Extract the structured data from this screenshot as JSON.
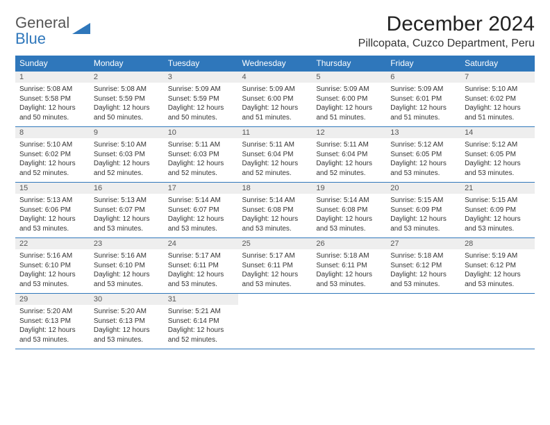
{
  "brand": {
    "line1": "General",
    "line2": "Blue"
  },
  "title": "December 2024",
  "location": "Pillcopata, Cuzco Department, Peru",
  "colors": {
    "header_bg": "#2f77bb",
    "header_text": "#ffffff",
    "daynum_bg": "#eeeeee",
    "border": "#2f77bb",
    "body_text": "#333333",
    "page_bg": "#ffffff"
  },
  "typography": {
    "title_fontsize": 30,
    "location_fontsize": 16,
    "dow_fontsize": 12,
    "daynum_fontsize": 11,
    "body_fontsize": 10
  },
  "dow": [
    "Sunday",
    "Monday",
    "Tuesday",
    "Wednesday",
    "Thursday",
    "Friday",
    "Saturday"
  ],
  "weeks": [
    [
      {
        "n": "1",
        "sr": "Sunrise: 5:08 AM",
        "ss": "Sunset: 5:58 PM",
        "d1": "Daylight: 12 hours",
        "d2": "and 50 minutes."
      },
      {
        "n": "2",
        "sr": "Sunrise: 5:08 AM",
        "ss": "Sunset: 5:59 PM",
        "d1": "Daylight: 12 hours",
        "d2": "and 50 minutes."
      },
      {
        "n": "3",
        "sr": "Sunrise: 5:09 AM",
        "ss": "Sunset: 5:59 PM",
        "d1": "Daylight: 12 hours",
        "d2": "and 50 minutes."
      },
      {
        "n": "4",
        "sr": "Sunrise: 5:09 AM",
        "ss": "Sunset: 6:00 PM",
        "d1": "Daylight: 12 hours",
        "d2": "and 51 minutes."
      },
      {
        "n": "5",
        "sr": "Sunrise: 5:09 AM",
        "ss": "Sunset: 6:00 PM",
        "d1": "Daylight: 12 hours",
        "d2": "and 51 minutes."
      },
      {
        "n": "6",
        "sr": "Sunrise: 5:09 AM",
        "ss": "Sunset: 6:01 PM",
        "d1": "Daylight: 12 hours",
        "d2": "and 51 minutes."
      },
      {
        "n": "7",
        "sr": "Sunrise: 5:10 AM",
        "ss": "Sunset: 6:02 PM",
        "d1": "Daylight: 12 hours",
        "d2": "and 51 minutes."
      }
    ],
    [
      {
        "n": "8",
        "sr": "Sunrise: 5:10 AM",
        "ss": "Sunset: 6:02 PM",
        "d1": "Daylight: 12 hours",
        "d2": "and 52 minutes."
      },
      {
        "n": "9",
        "sr": "Sunrise: 5:10 AM",
        "ss": "Sunset: 6:03 PM",
        "d1": "Daylight: 12 hours",
        "d2": "and 52 minutes."
      },
      {
        "n": "10",
        "sr": "Sunrise: 5:11 AM",
        "ss": "Sunset: 6:03 PM",
        "d1": "Daylight: 12 hours",
        "d2": "and 52 minutes."
      },
      {
        "n": "11",
        "sr": "Sunrise: 5:11 AM",
        "ss": "Sunset: 6:04 PM",
        "d1": "Daylight: 12 hours",
        "d2": "and 52 minutes."
      },
      {
        "n": "12",
        "sr": "Sunrise: 5:11 AM",
        "ss": "Sunset: 6:04 PM",
        "d1": "Daylight: 12 hours",
        "d2": "and 52 minutes."
      },
      {
        "n": "13",
        "sr": "Sunrise: 5:12 AM",
        "ss": "Sunset: 6:05 PM",
        "d1": "Daylight: 12 hours",
        "d2": "and 53 minutes."
      },
      {
        "n": "14",
        "sr": "Sunrise: 5:12 AM",
        "ss": "Sunset: 6:05 PM",
        "d1": "Daylight: 12 hours",
        "d2": "and 53 minutes."
      }
    ],
    [
      {
        "n": "15",
        "sr": "Sunrise: 5:13 AM",
        "ss": "Sunset: 6:06 PM",
        "d1": "Daylight: 12 hours",
        "d2": "and 53 minutes."
      },
      {
        "n": "16",
        "sr": "Sunrise: 5:13 AM",
        "ss": "Sunset: 6:07 PM",
        "d1": "Daylight: 12 hours",
        "d2": "and 53 minutes."
      },
      {
        "n": "17",
        "sr": "Sunrise: 5:14 AM",
        "ss": "Sunset: 6:07 PM",
        "d1": "Daylight: 12 hours",
        "d2": "and 53 minutes."
      },
      {
        "n": "18",
        "sr": "Sunrise: 5:14 AM",
        "ss": "Sunset: 6:08 PM",
        "d1": "Daylight: 12 hours",
        "d2": "and 53 minutes."
      },
      {
        "n": "19",
        "sr": "Sunrise: 5:14 AM",
        "ss": "Sunset: 6:08 PM",
        "d1": "Daylight: 12 hours",
        "d2": "and 53 minutes."
      },
      {
        "n": "20",
        "sr": "Sunrise: 5:15 AM",
        "ss": "Sunset: 6:09 PM",
        "d1": "Daylight: 12 hours",
        "d2": "and 53 minutes."
      },
      {
        "n": "21",
        "sr": "Sunrise: 5:15 AM",
        "ss": "Sunset: 6:09 PM",
        "d1": "Daylight: 12 hours",
        "d2": "and 53 minutes."
      }
    ],
    [
      {
        "n": "22",
        "sr": "Sunrise: 5:16 AM",
        "ss": "Sunset: 6:10 PM",
        "d1": "Daylight: 12 hours",
        "d2": "and 53 minutes."
      },
      {
        "n": "23",
        "sr": "Sunrise: 5:16 AM",
        "ss": "Sunset: 6:10 PM",
        "d1": "Daylight: 12 hours",
        "d2": "and 53 minutes."
      },
      {
        "n": "24",
        "sr": "Sunrise: 5:17 AM",
        "ss": "Sunset: 6:11 PM",
        "d1": "Daylight: 12 hours",
        "d2": "and 53 minutes."
      },
      {
        "n": "25",
        "sr": "Sunrise: 5:17 AM",
        "ss": "Sunset: 6:11 PM",
        "d1": "Daylight: 12 hours",
        "d2": "and 53 minutes."
      },
      {
        "n": "26",
        "sr": "Sunrise: 5:18 AM",
        "ss": "Sunset: 6:11 PM",
        "d1": "Daylight: 12 hours",
        "d2": "and 53 minutes."
      },
      {
        "n": "27",
        "sr": "Sunrise: 5:18 AM",
        "ss": "Sunset: 6:12 PM",
        "d1": "Daylight: 12 hours",
        "d2": "and 53 minutes."
      },
      {
        "n": "28",
        "sr": "Sunrise: 5:19 AM",
        "ss": "Sunset: 6:12 PM",
        "d1": "Daylight: 12 hours",
        "d2": "and 53 minutes."
      }
    ],
    [
      {
        "n": "29",
        "sr": "Sunrise: 5:20 AM",
        "ss": "Sunset: 6:13 PM",
        "d1": "Daylight: 12 hours",
        "d2": "and 53 minutes."
      },
      {
        "n": "30",
        "sr": "Sunrise: 5:20 AM",
        "ss": "Sunset: 6:13 PM",
        "d1": "Daylight: 12 hours",
        "d2": "and 53 minutes."
      },
      {
        "n": "31",
        "sr": "Sunrise: 5:21 AM",
        "ss": "Sunset: 6:14 PM",
        "d1": "Daylight: 12 hours",
        "d2": "and 52 minutes."
      },
      {
        "empty": true
      },
      {
        "empty": true
      },
      {
        "empty": true
      },
      {
        "empty": true
      }
    ]
  ]
}
